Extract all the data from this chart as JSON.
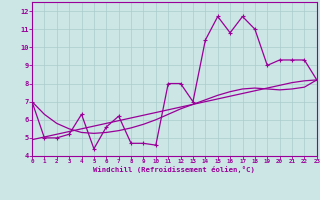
{
  "title": "",
  "xlabel": "Windchill (Refroidissement éolien,°C)",
  "x": [
    0,
    1,
    2,
    3,
    4,
    5,
    6,
    7,
    8,
    9,
    10,
    11,
    12,
    13,
    14,
    15,
    16,
    17,
    18,
    19,
    20,
    21,
    22,
    23
  ],
  "y_line": [
    7.0,
    5.0,
    5.0,
    5.2,
    6.3,
    4.4,
    5.6,
    6.2,
    4.7,
    4.7,
    4.6,
    8.0,
    8.0,
    7.0,
    10.4,
    11.7,
    10.8,
    11.7,
    11.0,
    9.0,
    9.3,
    9.3,
    9.3,
    8.2
  ],
  "y_trend1": [
    4.9,
    5.05,
    5.2,
    5.35,
    5.5,
    5.65,
    5.8,
    5.95,
    6.1,
    6.25,
    6.4,
    6.55,
    6.7,
    6.85,
    7.0,
    7.15,
    7.3,
    7.45,
    7.6,
    7.75,
    7.9,
    8.05,
    8.15,
    8.2
  ],
  "y_trend2": [
    7.0,
    6.3,
    5.8,
    5.5,
    5.3,
    5.25,
    5.3,
    5.4,
    5.55,
    5.75,
    6.0,
    6.3,
    6.6,
    6.85,
    7.1,
    7.35,
    7.55,
    7.7,
    7.75,
    7.7,
    7.65,
    7.7,
    7.8,
    8.2
  ],
  "line_color": "#990099",
  "bg_color": "#cce5e5",
  "grid_color": "#aacccc",
  "xlim": [
    0,
    23
  ],
  "ylim": [
    4.0,
    12.5
  ],
  "yticks": [
    4,
    5,
    6,
    7,
    8,
    9,
    10,
    11,
    12
  ],
  "xticks": [
    0,
    1,
    2,
    3,
    4,
    5,
    6,
    7,
    8,
    9,
    10,
    11,
    12,
    13,
    14,
    15,
    16,
    17,
    18,
    19,
    20,
    21,
    22,
    23
  ]
}
